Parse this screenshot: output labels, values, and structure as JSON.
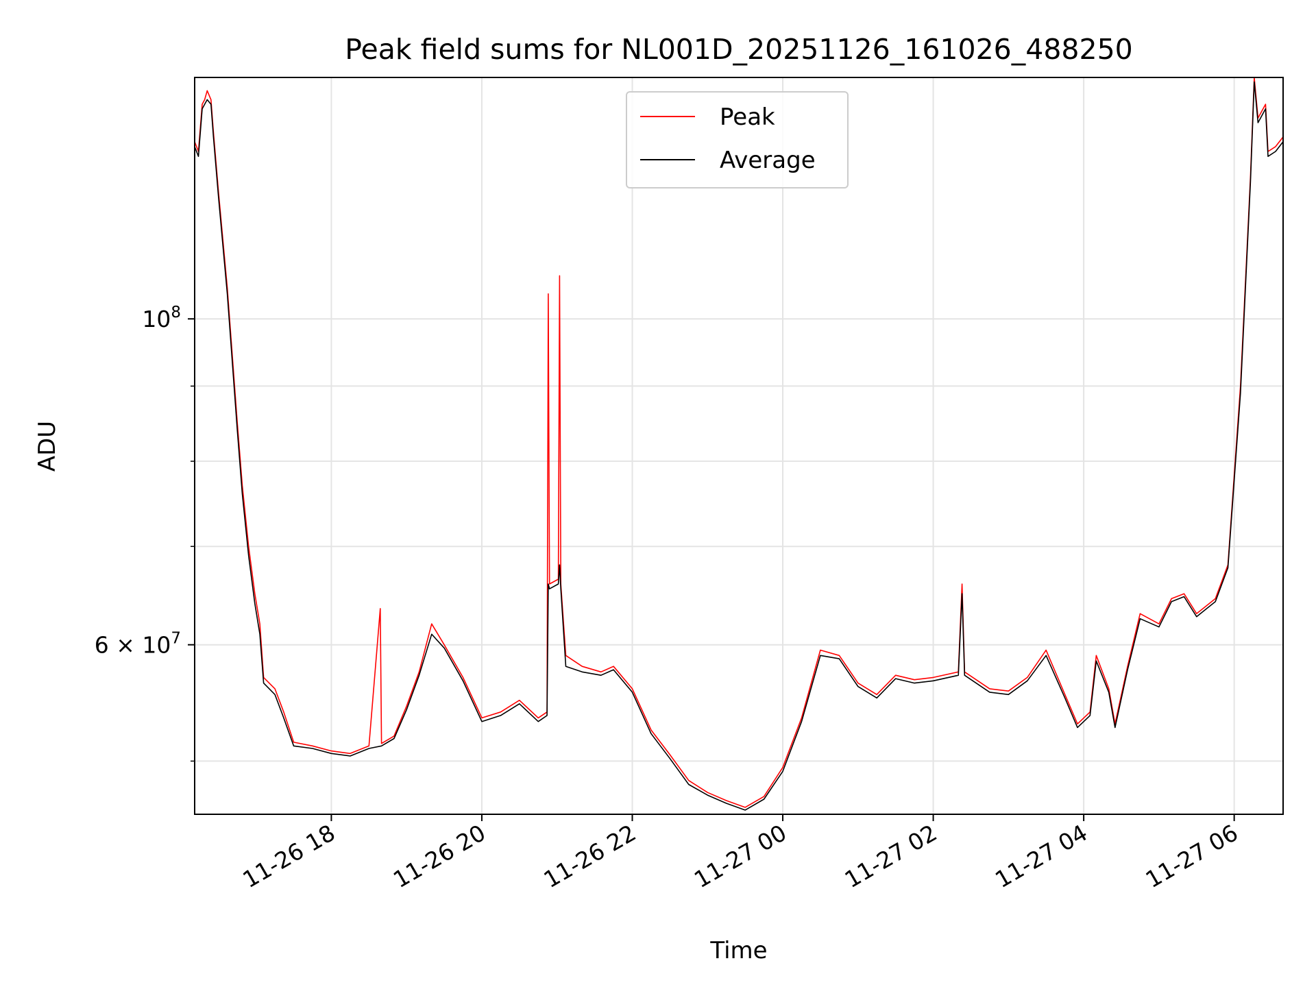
{
  "chart_data": {
    "type": "line",
    "title": "Peak field sums for NL001D_20251126_161026_488250",
    "xlabel": "Time",
    "ylabel": "ADU",
    "x_range": [
      "2025-11-26 16:11",
      "2025-11-27 06:39"
    ],
    "y_range": [
      46000000,
      146000000
    ],
    "y_scale": "log",
    "grid": true,
    "legend_placement": "upper center",
    "x_ticks": [
      {
        "value": "2025-11-26 18:00",
        "label": "11-26 18"
      },
      {
        "value": "2025-11-26 20:00",
        "label": "11-26 20"
      },
      {
        "value": "2025-11-26 22:00",
        "label": "11-26 22"
      },
      {
        "value": "2025-11-27 00:00",
        "label": "11-27 00"
      },
      {
        "value": "2025-11-27 02:00",
        "label": "11-27 02"
      },
      {
        "value": "2025-11-27 04:00",
        "label": "11-27 04"
      },
      {
        "value": "2025-11-27 06:00",
        "label": "11-27 06"
      }
    ],
    "y_ticks": [
      {
        "value": 100000000,
        "base": "10",
        "exp": "8"
      },
      {
        "value": 60000000,
        "base": "6 × 10",
        "exp": "7"
      }
    ],
    "y_minor_ticks": [
      50000000,
      70000000,
      80000000,
      90000000
    ],
    "series": [
      {
        "name": "Peak",
        "color": "#ff0000",
        "points": [
          [
            "2025-11-26 16:11",
            132000000
          ],
          [
            "2025-11-26 16:14",
            130000000
          ],
          [
            "2025-11-26 16:17",
            140000000
          ],
          [
            "2025-11-26 16:19",
            141000000
          ],
          [
            "2025-11-26 16:21",
            143000000
          ],
          [
            "2025-11-26 16:24",
            141000000
          ],
          [
            "2025-11-26 16:26",
            134000000
          ],
          [
            "2025-11-26 16:30",
            122000000
          ],
          [
            "2025-11-26 16:37",
            105000000
          ],
          [
            "2025-11-26 16:45",
            85000000
          ],
          [
            "2025-11-26 16:49",
            77000000
          ],
          [
            "2025-11-26 16:54",
            70000000
          ],
          [
            "2025-11-26 16:59",
            65000000
          ],
          [
            "2025-11-26 17:03",
            62000000
          ],
          [
            "2025-11-26 17:06",
            57000000
          ],
          [
            "2025-11-26 17:15",
            56000000
          ],
          [
            "2025-11-26 17:22",
            54000000
          ],
          [
            "2025-11-26 17:30",
            51500000
          ],
          [
            "2025-11-26 17:45",
            51200000
          ],
          [
            "2025-11-26 18:00",
            50800000
          ],
          [
            "2025-11-26 18:15",
            50600000
          ],
          [
            "2025-11-26 18:30",
            51200000
          ],
          [
            "2025-11-26 18:39",
            63500000
          ],
          [
            "2025-11-26 18:40",
            51400000
          ],
          [
            "2025-11-26 18:50",
            52000000
          ],
          [
            "2025-11-26 19:00",
            54500000
          ],
          [
            "2025-11-26 19:10",
            57500000
          ],
          [
            "2025-11-26 19:20",
            62000000
          ],
          [
            "2025-11-26 19:30",
            60000000
          ],
          [
            "2025-11-26 19:45",
            57000000
          ],
          [
            "2025-11-26 20:00",
            53500000
          ],
          [
            "2025-11-26 20:15",
            54000000
          ],
          [
            "2025-11-26 20:30",
            55000000
          ],
          [
            "2025-11-26 20:45",
            53500000
          ],
          [
            "2025-11-26 20:52",
            54000000
          ],
          [
            "2025-11-26 20:53",
            104000000
          ],
          [
            "2025-11-26 20:54",
            66000000
          ],
          [
            "2025-11-26 21:01",
            66500000
          ],
          [
            "2025-11-26 21:02",
            107000000
          ],
          [
            "2025-11-26 21:03",
            66000000
          ],
          [
            "2025-11-26 21:07",
            59000000
          ],
          [
            "2025-11-26 21:20",
            58000000
          ],
          [
            "2025-11-26 21:35",
            57500000
          ],
          [
            "2025-11-26 21:45",
            58000000
          ],
          [
            "2025-11-26 22:00",
            56000000
          ],
          [
            "2025-11-26 22:15",
            52500000
          ],
          [
            "2025-11-26 22:30",
            50500000
          ],
          [
            "2025-11-26 22:45",
            48500000
          ],
          [
            "2025-11-26 23:00",
            47600000
          ],
          [
            "2025-11-26 23:15",
            47000000
          ],
          [
            "2025-11-26 23:30",
            46500000
          ],
          [
            "2025-11-26 23:45",
            47300000
          ],
          [
            "2025-11-27 00:00",
            49500000
          ],
          [
            "2025-11-27 00:15",
            53500000
          ],
          [
            "2025-11-27 00:30",
            59500000
          ],
          [
            "2025-11-27 00:45",
            59000000
          ],
          [
            "2025-11-27 01:00",
            56500000
          ],
          [
            "2025-11-27 01:15",
            55500000
          ],
          [
            "2025-11-27 01:30",
            57200000
          ],
          [
            "2025-11-27 01:45",
            56800000
          ],
          [
            "2025-11-27 02:00",
            57000000
          ],
          [
            "2025-11-27 02:20",
            57500000
          ],
          [
            "2025-11-27 02:23",
            66000000
          ],
          [
            "2025-11-27 02:25",
            57500000
          ],
          [
            "2025-11-27 02:45",
            56000000
          ],
          [
            "2025-11-27 03:00",
            55800000
          ],
          [
            "2025-11-27 03:15",
            57000000
          ],
          [
            "2025-11-27 03:30",
            59500000
          ],
          [
            "2025-11-27 03:45",
            55500000
          ],
          [
            "2025-11-27 03:55",
            53000000
          ],
          [
            "2025-11-27 04:05",
            54000000
          ],
          [
            "2025-11-27 04:10",
            59000000
          ],
          [
            "2025-11-27 04:20",
            56000000
          ],
          [
            "2025-11-27 04:25",
            53000000
          ],
          [
            "2025-11-27 04:35",
            58000000
          ],
          [
            "2025-11-27 04:45",
            63000000
          ],
          [
            "2025-11-27 05:00",
            62000000
          ],
          [
            "2025-11-27 05:10",
            64500000
          ],
          [
            "2025-11-27 05:20",
            65000000
          ],
          [
            "2025-11-27 05:30",
            63000000
          ],
          [
            "2025-11-27 05:45",
            64500000
          ],
          [
            "2025-11-27 05:55",
            68000000
          ],
          [
            "2025-11-27 06:05",
            90000000
          ],
          [
            "2025-11-27 06:13",
            125000000
          ],
          [
            "2025-11-27 06:16",
            146000000
          ],
          [
            "2025-11-27 06:19",
            137000000
          ],
          [
            "2025-11-27 06:25",
            140000000
          ],
          [
            "2025-11-27 06:27",
            130000000
          ],
          [
            "2025-11-27 06:33",
            131000000
          ],
          [
            "2025-11-27 06:39",
            133000000
          ]
        ]
      },
      {
        "name": "Average",
        "color": "#000000",
        "points": [
          [
            "2025-11-26 16:11",
            131000000
          ],
          [
            "2025-11-26 16:14",
            129000000
          ],
          [
            "2025-11-26 16:17",
            139000000
          ],
          [
            "2025-11-26 16:19",
            140000000
          ],
          [
            "2025-11-26 16:21",
            141000000
          ],
          [
            "2025-11-26 16:24",
            140000000
          ],
          [
            "2025-11-26 16:26",
            133000000
          ],
          [
            "2025-11-26 16:30",
            121000000
          ],
          [
            "2025-11-26 16:37",
            104000000
          ],
          [
            "2025-11-26 16:45",
            84000000
          ],
          [
            "2025-11-26 16:49",
            76000000
          ],
          [
            "2025-11-26 16:54",
            69000000
          ],
          [
            "2025-11-26 16:59",
            64000000
          ],
          [
            "2025-11-26 17:03",
            61000000
          ],
          [
            "2025-11-26 17:06",
            56500000
          ],
          [
            "2025-11-26 17:15",
            55500000
          ],
          [
            "2025-11-26 17:22",
            53500000
          ],
          [
            "2025-11-26 17:30",
            51200000
          ],
          [
            "2025-11-26 17:45",
            51000000
          ],
          [
            "2025-11-26 18:00",
            50600000
          ],
          [
            "2025-11-26 18:15",
            50400000
          ],
          [
            "2025-11-26 18:30",
            51000000
          ],
          [
            "2025-11-26 18:40",
            51200000
          ],
          [
            "2025-11-26 18:50",
            51800000
          ],
          [
            "2025-11-26 19:00",
            54200000
          ],
          [
            "2025-11-26 19:10",
            57200000
          ],
          [
            "2025-11-26 19:20",
            61000000
          ],
          [
            "2025-11-26 19:30",
            59700000
          ],
          [
            "2025-11-26 19:45",
            56700000
          ],
          [
            "2025-11-26 20:00",
            53200000
          ],
          [
            "2025-11-26 20:15",
            53700000
          ],
          [
            "2025-11-26 20:30",
            54700000
          ],
          [
            "2025-11-26 20:45",
            53200000
          ],
          [
            "2025-11-26 20:52",
            53700000
          ],
          [
            "2025-11-26 20:53",
            66000000
          ],
          [
            "2025-11-26 20:54",
            65500000
          ],
          [
            "2025-11-26 21:01",
            66000000
          ],
          [
            "2025-11-26 21:02",
            68000000
          ],
          [
            "2025-11-26 21:03",
            65500000
          ],
          [
            "2025-11-26 21:07",
            58000000
          ],
          [
            "2025-11-26 21:20",
            57500000
          ],
          [
            "2025-11-26 21:35",
            57200000
          ],
          [
            "2025-11-26 21:45",
            57700000
          ],
          [
            "2025-11-26 22:00",
            55700000
          ],
          [
            "2025-11-26 22:15",
            52200000
          ],
          [
            "2025-11-26 22:30",
            50200000
          ],
          [
            "2025-11-26 22:45",
            48200000
          ],
          [
            "2025-11-26 23:00",
            47400000
          ],
          [
            "2025-11-26 23:15",
            46800000
          ],
          [
            "2025-11-26 23:30",
            46300000
          ],
          [
            "2025-11-26 23:45",
            47100000
          ],
          [
            "2025-11-27 00:00",
            49200000
          ],
          [
            "2025-11-27 00:15",
            53200000
          ],
          [
            "2025-11-27 00:30",
            59000000
          ],
          [
            "2025-11-27 00:45",
            58700000
          ],
          [
            "2025-11-27 01:00",
            56200000
          ],
          [
            "2025-11-27 01:15",
            55200000
          ],
          [
            "2025-11-27 01:30",
            56900000
          ],
          [
            "2025-11-27 01:45",
            56500000
          ],
          [
            "2025-11-27 02:00",
            56700000
          ],
          [
            "2025-11-27 02:20",
            57200000
          ],
          [
            "2025-11-27 02:23",
            65000000
          ],
          [
            "2025-11-27 02:25",
            57200000
          ],
          [
            "2025-11-27 02:45",
            55700000
          ],
          [
            "2025-11-27 03:00",
            55500000
          ],
          [
            "2025-11-27 03:15",
            56700000
          ],
          [
            "2025-11-27 03:30",
            59000000
          ],
          [
            "2025-11-27 03:45",
            55200000
          ],
          [
            "2025-11-27 03:55",
            52700000
          ],
          [
            "2025-11-27 04:05",
            53700000
          ],
          [
            "2025-11-27 04:10",
            58500000
          ],
          [
            "2025-11-27 04:20",
            55700000
          ],
          [
            "2025-11-27 04:25",
            52700000
          ],
          [
            "2025-11-27 04:35",
            57700000
          ],
          [
            "2025-11-27 04:45",
            62500000
          ],
          [
            "2025-11-27 05:00",
            61700000
          ],
          [
            "2025-11-27 05:10",
            64200000
          ],
          [
            "2025-11-27 05:20",
            64700000
          ],
          [
            "2025-11-27 05:30",
            62700000
          ],
          [
            "2025-11-27 05:45",
            64200000
          ],
          [
            "2025-11-27 05:55",
            67700000
          ],
          [
            "2025-11-27 06:05",
            89000000
          ],
          [
            "2025-11-27 06:13",
            124000000
          ],
          [
            "2025-11-27 06:16",
            145000000
          ],
          [
            "2025-11-27 06:19",
            136000000
          ],
          [
            "2025-11-27 06:25",
            139000000
          ],
          [
            "2025-11-27 06:27",
            129000000
          ],
          [
            "2025-11-27 06:33",
            130000000
          ],
          [
            "2025-11-27 06:39",
            132000000
          ]
        ]
      }
    ]
  }
}
